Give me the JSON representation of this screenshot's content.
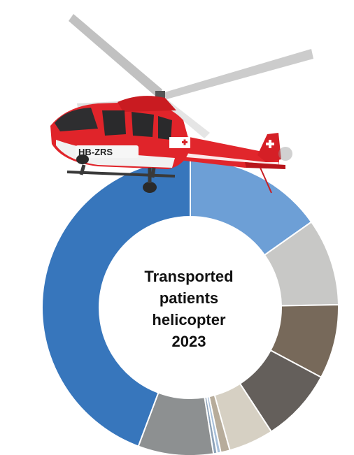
{
  "chart_data": {
    "type": "pie",
    "style": "donut",
    "title_lines": [
      "Transported",
      "patients",
      "helicopter",
      "2023"
    ],
    "values": [
      15.2,
      9.5,
      8.1,
      8.0,
      4.9,
      1.0,
      0.4,
      0.4,
      8.2,
      44.3
    ],
    "colors": [
      "#6d9fd6",
      "#c8c8c6",
      "#77695a",
      "#645f5b",
      "#d6d0c3",
      "#b7ac9b",
      "#a9c1db",
      "#8da2b8",
      "#8d9091",
      "#3776bc"
    ],
    "start_angle_deg": 0,
    "direction": "clockwise",
    "legend": "none"
  },
  "illustration": {
    "subject": "rescue-helicopter",
    "body_color": "#d7262b",
    "tail_code": "HB-ZRS"
  }
}
